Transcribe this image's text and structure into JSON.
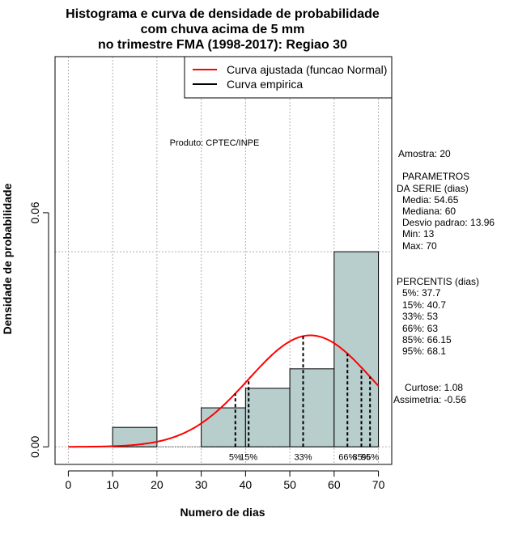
{
  "chart_data": {
    "type": "bar",
    "title": [
      "Histograma e curva de densidade de probabilidade",
      "com chuva acima de 5 mm",
      "no trimestre FMA (1998-2017): Regiao 30"
    ],
    "xlabel": "Numero de dias",
    "ylabel": "Densidade de probabilidade",
    "xlim": [
      -3,
      73
    ],
    "ylim": [
      -0.0045,
      0.1
    ],
    "x_ticks": [
      0,
      10,
      20,
      30,
      40,
      50,
      60,
      70
    ],
    "y_ticks": [
      0.0,
      0.06
    ],
    "y_tick_labels": [
      "0.00",
      "0.06"
    ],
    "bins": [
      {
        "from": 10,
        "to": 20,
        "density": 0.005
      },
      {
        "from": 20,
        "to": 30,
        "density": 0.0
      },
      {
        "from": 30,
        "to": 40,
        "density": 0.01
      },
      {
        "from": 40,
        "to": 50,
        "density": 0.015
      },
      {
        "from": 50,
        "to": 60,
        "density": 0.02
      },
      {
        "from": 60,
        "to": 70,
        "density": 0.05
      }
    ],
    "bar_color": "#b8cecd",
    "normal_curve": {
      "mean": 54.65,
      "sd": 13.96,
      "color": "#ff0000",
      "x_range": [
        0,
        70
      ]
    },
    "percentile_lines": [
      {
        "label": "5%",
        "x": 37.7
      },
      {
        "label": "15%",
        "x": 40.7
      },
      {
        "label": "33%",
        "x": 53
      },
      {
        "label": "66%",
        "x": 63
      },
      {
        "label": "85%",
        "x": 66.15
      },
      {
        "label": "95%",
        "x": 68.1
      }
    ],
    "vertical_grid": [
      0,
      10,
      20,
      30,
      40,
      50,
      60,
      70
    ],
    "horizontal_grid": [
      0.0,
      0.05
    ],
    "legend": {
      "position": "top-right",
      "entries": [
        {
          "label": "Curva ajustada (funcao Normal)",
          "color": "#ff0000"
        },
        {
          "label": "Curva empirica",
          "color": "#000000"
        }
      ]
    },
    "annotation": "Produto: CPTEC/INPE"
  },
  "side_panel": {
    "lines_top": [
      "Amostra: 20"
    ],
    "parametros": [
      "PARAMETROS",
      "DA SERIE (dias)",
      "Media: 54.65",
      "Mediana: 60",
      "Desvio padrao: 13.96",
      "Min: 13",
      "Max: 70"
    ],
    "percentis": [
      "PERCENTIS (dias)",
      "5%: 37.7",
      "15%: 40.7",
      "33%: 53",
      "66%: 63",
      "85%: 66.15",
      "95%: 68.1"
    ],
    "shape": [
      "Curtose: 1.08",
      "Assimetria: -0.56"
    ]
  }
}
